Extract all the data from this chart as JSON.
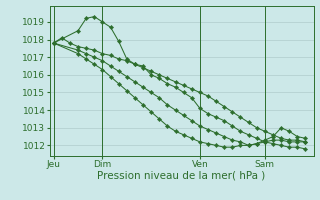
{
  "bg_color": "#cce8e8",
  "grid_color": "#b0cccc",
  "line_color": "#2d6e2d",
  "marker_color": "#2d6e2d",
  "xlabel": "Pression niveau de la mer( hPa )",
  "xlabel_fontsize": 7.5,
  "ytick_labels": [
    "1012",
    "1013",
    "1014",
    "1015",
    "1016",
    "1017",
    "1018",
    "1019"
  ],
  "yticks": [
    1012,
    1013,
    1014,
    1015,
    1016,
    1017,
    1018,
    1019
  ],
  "ylim": [
    1011.4,
    1019.9
  ],
  "xtick_labels": [
    "Jeu",
    "Dim",
    "Ven",
    "Sam"
  ],
  "xtick_positions": [
    0,
    6,
    18,
    26
  ],
  "xlim": [
    -0.5,
    32
  ],
  "vline_positions": [
    0,
    6,
    18,
    26
  ],
  "series": [
    {
      "x": [
        0,
        1,
        2,
        3,
        4,
        5,
        6,
        7,
        8,
        9,
        10,
        11,
        12,
        13,
        14,
        15,
        16,
        17,
        18,
        19,
        20,
        21,
        22,
        23,
        24,
        25,
        26,
        27,
        28,
        29,
        30,
        31
      ],
      "y": [
        1017.8,
        1018.1,
        1017.8,
        1017.6,
        1017.5,
        1017.4,
        1017.2,
        1017.1,
        1016.9,
        1016.8,
        1016.6,
        1016.4,
        1016.2,
        1016.0,
        1015.8,
        1015.6,
        1015.4,
        1015.2,
        1015.0,
        1014.8,
        1014.5,
        1014.2,
        1013.9,
        1013.6,
        1013.3,
        1013.0,
        1012.8,
        1012.6,
        1012.4,
        1012.3,
        1012.3,
        1012.2
      ]
    },
    {
      "x": [
        0,
        3,
        4,
        5,
        6,
        7,
        8,
        9,
        10,
        11,
        12,
        13,
        14,
        15,
        16,
        17,
        18,
        19,
        20,
        21,
        22,
        23,
        24,
        25,
        26,
        27,
        28,
        29,
        30,
        31
      ],
      "y": [
        1017.8,
        1018.5,
        1019.2,
        1019.3,
        1019.0,
        1018.7,
        1017.9,
        1016.9,
        1016.6,
        1016.5,
        1016.0,
        1015.8,
        1015.5,
        1015.3,
        1015.0,
        1014.7,
        1014.1,
        1013.8,
        1013.6,
        1013.4,
        1013.1,
        1012.8,
        1012.6,
        1012.4,
        1012.2,
        1012.3,
        1012.3,
        1012.2,
        1012.2,
        1012.2
      ]
    },
    {
      "x": [
        0,
        3,
        4,
        5,
        6,
        7,
        8,
        9,
        10,
        11,
        12,
        13,
        14,
        15,
        16,
        17,
        18,
        19,
        20,
        21,
        22,
        23,
        24,
        25,
        26,
        27,
        28,
        29,
        30,
        31
      ],
      "y": [
        1017.8,
        1017.4,
        1017.2,
        1017.0,
        1016.8,
        1016.5,
        1016.2,
        1015.9,
        1015.6,
        1015.3,
        1015.0,
        1014.7,
        1014.3,
        1014.0,
        1013.7,
        1013.4,
        1013.1,
        1012.9,
        1012.7,
        1012.5,
        1012.3,
        1012.2,
        1012.0,
        1012.1,
        1012.3,
        1012.5,
        1013.0,
        1012.8,
        1012.5,
        1012.4
      ]
    },
    {
      "x": [
        0,
        3,
        4,
        5,
        6,
        7,
        8,
        9,
        10,
        11,
        12,
        13,
        14,
        15,
        16,
        17,
        18,
        19,
        20,
        21,
        22,
        23,
        24,
        25,
        26,
        27,
        28,
        29,
        30,
        31
      ],
      "y": [
        1017.8,
        1017.2,
        1016.9,
        1016.6,
        1016.3,
        1015.9,
        1015.5,
        1015.1,
        1014.7,
        1014.3,
        1013.9,
        1013.5,
        1013.1,
        1012.8,
        1012.6,
        1012.4,
        1012.2,
        1012.1,
        1012.0,
        1011.9,
        1011.9,
        1012.0,
        1012.0,
        1012.1,
        1012.2,
        1012.1,
        1012.0,
        1011.9,
        1011.9,
        1011.8
      ]
    }
  ],
  "linewidth": 0.75,
  "markersize": 2.2,
  "marker": "D"
}
